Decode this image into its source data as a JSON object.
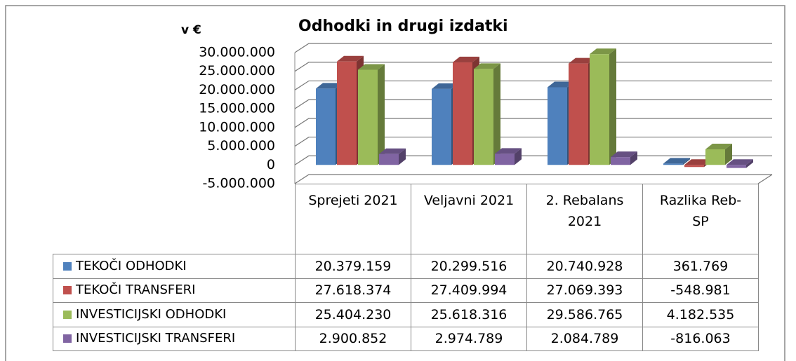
{
  "chart_data": {
    "type": "bar",
    "title": "Odhodki in drugi izdatki",
    "y_axis_label": "v €",
    "categories": [
      "Sprejeti 2021",
      "Veljavni 2021",
      "2. Rebalans 2021",
      "Razlika Reb-SP"
    ],
    "series": [
      {
        "name": "TEKOČI ODHODKI",
        "color": "#4f81bd",
        "values": [
          20379159,
          20299516,
          20740928,
          361769
        ],
        "value_labels": [
          "20.379.159",
          "20.299.516",
          "20.740.928",
          "361.769"
        ]
      },
      {
        "name": "TEKOČI TRANSFERI",
        "color": "#c0504d",
        "values": [
          27618374,
          27409994,
          27069393,
          -548981
        ],
        "value_labels": [
          "27.618.374",
          "27.409.994",
          "27.069.393",
          "-548.981"
        ]
      },
      {
        "name": "INVESTICIJSKI ODHODKI",
        "color": "#9bbb59",
        "values": [
          25404230,
          25618316,
          29586765,
          4182535
        ],
        "value_labels": [
          "25.404.230",
          "25.618.316",
          "29.586.765",
          "4.182.535"
        ]
      },
      {
        "name": "INVESTICIJSKI TRANSFERI",
        "color": "#8064a2",
        "values": [
          2900852,
          2974789,
          2084789,
          -816063
        ],
        "value_labels": [
          "2.900.852",
          "2.974.789",
          "2.084.789",
          "-816.063"
        ]
      }
    ],
    "ylim": [
      -5000000,
      30000000
    ],
    "yticks": [
      {
        "value": -5000000,
        "label": "-5.000.000"
      },
      0,
      {
        "value": 5000000,
        "label": "5.000.000"
      },
      {
        "value": 10000000,
        "label": "10.000.000"
      },
      {
        "value": 15000000,
        "label": "15.000.000"
      },
      {
        "value": 20000000,
        "label": "20.000.000"
      },
      {
        "value": 25000000,
        "label": "25.000.000"
      },
      {
        "value": 30000000,
        "label": "30.000.000"
      }
    ],
    "grid": true,
    "data_table": true
  }
}
